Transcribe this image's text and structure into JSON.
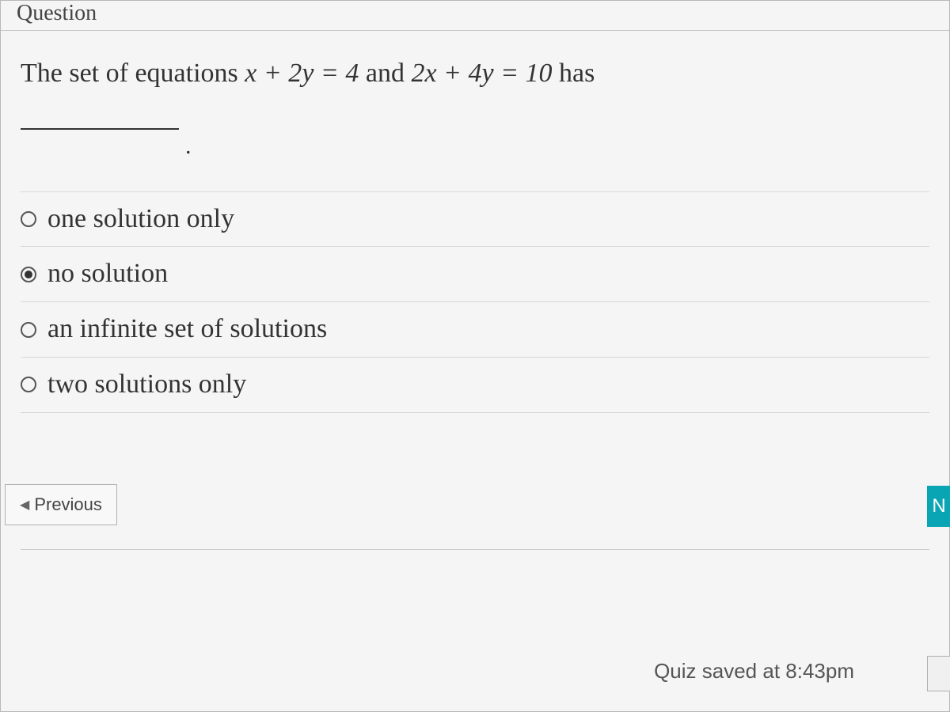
{
  "header": {
    "label": "Question"
  },
  "question": {
    "text_prefix": "The set of equations ",
    "equation1": "x + 2y = 4",
    "text_middle": " and ",
    "equation2": "2x + 4y = 10",
    "text_suffix": " has"
  },
  "options": [
    {
      "label": "one solution only",
      "selected": false
    },
    {
      "label": "no solution",
      "selected": true
    },
    {
      "label": "an infinite set of solutions",
      "selected": false
    },
    {
      "label": "two solutions only",
      "selected": false
    }
  ],
  "nav": {
    "previous_label": "Previous",
    "next_label": "N"
  },
  "status": {
    "saved_text": "Quiz saved at 8:43pm"
  },
  "colors": {
    "background": "#e8e8e8",
    "card_background": "#f5f5f5",
    "border": "#b8b8b8",
    "divider": "#d8d8d8",
    "text": "#333333",
    "next_button": "#0aa5b5"
  }
}
